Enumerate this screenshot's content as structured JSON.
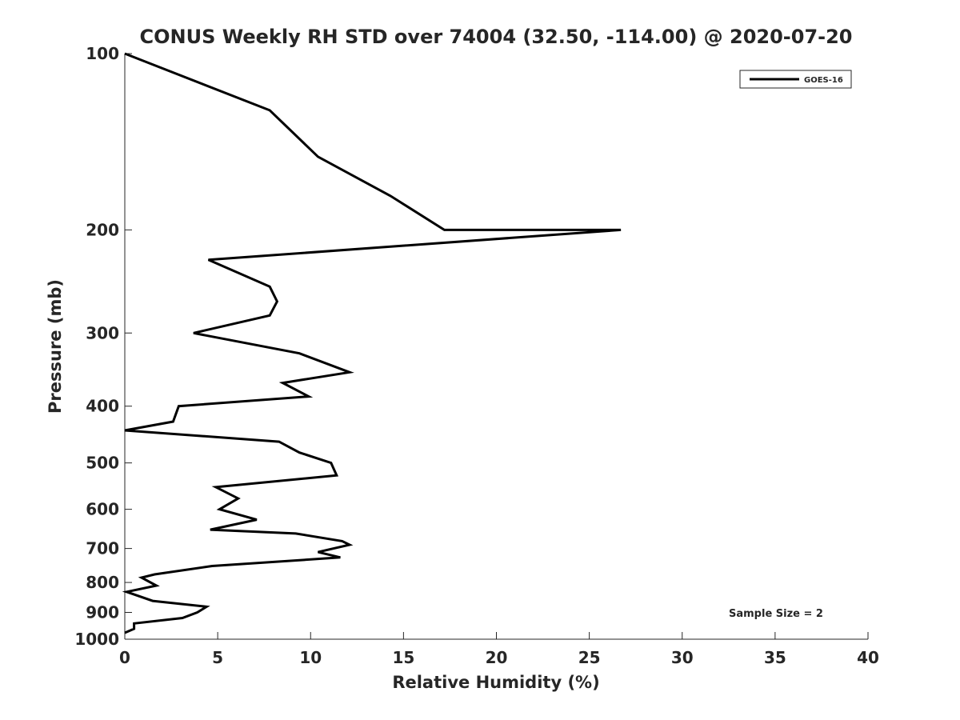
{
  "chart_data": {
    "type": "line",
    "title": "CONUS Weekly RH STD over 74004 (32.50, -114.00) @ 2020-07-20",
    "xlabel": "Relative Humidity (%)",
    "ylabel": "Pressure (mb)",
    "xlim": [
      0,
      40
    ],
    "ylim": [
      100,
      1000
    ],
    "y_scale": "log",
    "y_reversed": true,
    "grid": false,
    "legend_position": "top-right",
    "xticks": [
      "0",
      "5",
      "10",
      "15",
      "20",
      "25",
      "30",
      "35",
      "40"
    ],
    "yticks": [
      "100",
      "200",
      "300",
      "400",
      "500",
      "600",
      "700",
      "800",
      "900",
      "1000"
    ],
    "annotation": "Sample Size = 2",
    "series": [
      {
        "name": "GOES-16",
        "color": "#000000",
        "x": [
          0,
          7.8,
          10.4,
          14.3,
          17.2,
          26.7,
          4.5,
          7.8,
          8.2,
          7.8,
          3.7,
          9.4,
          12.1,
          8.5,
          9.9,
          2.9,
          2.6,
          0,
          8.3,
          9.4,
          11.1,
          11.4,
          4.9,
          6.1,
          5.1,
          7.1,
          4.6,
          9.2,
          11.7,
          12.1,
          10.4,
          11.6,
          4.7,
          1.6,
          0.9,
          1.7,
          0.1,
          1.5,
          4.4,
          3.9,
          3.1,
          0.5,
          0.5,
          0
        ],
        "y": [
          100,
          125,
          150,
          175,
          200,
          200,
          225,
          250,
          265,
          280,
          300,
          325,
          350,
          365,
          385,
          400,
          425,
          440,
          460,
          480,
          500,
          525,
          550,
          575,
          600,
          625,
          650,
          660,
          680,
          690,
          710,
          725,
          750,
          775,
          785,
          810,
          830,
          860,
          880,
          900,
          920,
          940,
          960,
          975
        ]
      }
    ]
  }
}
